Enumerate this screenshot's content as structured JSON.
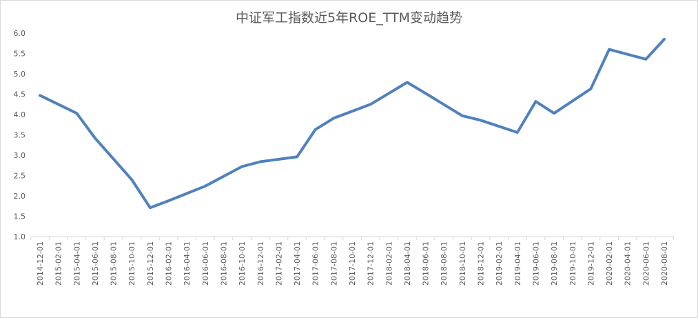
{
  "chart_data": {
    "type": "line",
    "title": "中证军工指数近5年ROE_TTM变动趋势",
    "xlabel": "",
    "ylabel": "",
    "ylim": [
      1.0,
      6.0
    ],
    "yticks": [
      "1.0",
      "1.5",
      "2.0",
      "2.5",
      "3.0",
      "3.5",
      "4.0",
      "4.5",
      "5.0",
      "5.5",
      "6.0"
    ],
    "ygrid": false,
    "legend": "none",
    "series_color": "#4f81bd",
    "categories": [
      "2014-12-01",
      "2015-02-01",
      "2015-04-01",
      "2015-06-01",
      "2015-08-01",
      "2015-10-01",
      "2015-12-01",
      "2016-02-01",
      "2016-04-01",
      "2016-06-01",
      "2016-08-01",
      "2016-10-01",
      "2016-12-01",
      "2017-02-01",
      "2017-04-01",
      "2017-06-01",
      "2017-08-01",
      "2017-10-01",
      "2017-12-01",
      "2018-02-01",
      "2018-04-01",
      "2018-06-01",
      "2018-08-01",
      "2018-10-01",
      "2018-12-01",
      "2019-02-01",
      "2019-04-01",
      "2019-06-01",
      "2019-08-01",
      "2019-10-01",
      "2019-12-01",
      "2020-02-01",
      "2020-04-01",
      "2020-06-01",
      "2020-08-01"
    ],
    "points": [
      {
        "x": "2014-12-01",
        "y": 4.47
      },
      {
        "x": "2015-04-01",
        "y": 4.03
      },
      {
        "x": "2015-06-01",
        "y": 3.42
      },
      {
        "x": "2015-10-01",
        "y": 2.4
      },
      {
        "x": "2015-12-01",
        "y": 1.71
      },
      {
        "x": "2016-02-01",
        "y": 1.88
      },
      {
        "x": "2016-06-01",
        "y": 2.24
      },
      {
        "x": "2016-10-01",
        "y": 2.72
      },
      {
        "x": "2016-12-01",
        "y": 2.84
      },
      {
        "x": "2017-04-01",
        "y": 2.96
      },
      {
        "x": "2017-06-01",
        "y": 3.63
      },
      {
        "x": "2017-08-01",
        "y": 3.91
      },
      {
        "x": "2017-12-01",
        "y": 4.25
      },
      {
        "x": "2018-04-01",
        "y": 4.79
      },
      {
        "x": "2018-06-01",
        "y": 4.52
      },
      {
        "x": "2018-10-01",
        "y": 3.97
      },
      {
        "x": "2018-12-01",
        "y": 3.86
      },
      {
        "x": "2019-04-01",
        "y": 3.56
      },
      {
        "x": "2019-06-01",
        "y": 4.32
      },
      {
        "x": "2019-08-01",
        "y": 4.03
      },
      {
        "x": "2019-12-01",
        "y": 4.63
      },
      {
        "x": "2020-02-01",
        "y": 5.6
      },
      {
        "x": "2020-06-01",
        "y": 5.36
      },
      {
        "x": "2020-08-01",
        "y": 5.85
      }
    ]
  }
}
